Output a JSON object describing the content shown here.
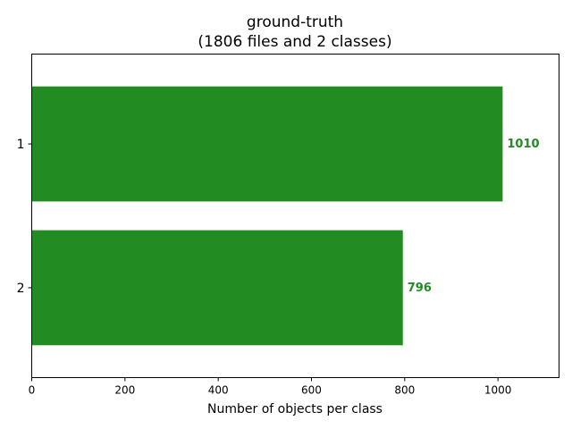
{
  "chart_data": {
    "type": "bar",
    "orientation": "horizontal",
    "title": "ground-truth",
    "subtitle": "(1806 files and 2 classes)",
    "categories": [
      "1",
      "2"
    ],
    "values": [
      1010,
      796
    ],
    "data_labels": [
      "1010",
      "796"
    ],
    "xlabel": "Number of objects per class",
    "ylabel": "",
    "xlim": [
      0,
      1131
    ],
    "xticks": [
      0,
      200,
      400,
      600,
      800,
      1000
    ],
    "xtick_labels": [
      "0",
      "200",
      "400",
      "600",
      "800",
      "1000"
    ],
    "grid": false,
    "legend": "none",
    "bar_color": "#228b22",
    "label_color": "#228b22"
  }
}
